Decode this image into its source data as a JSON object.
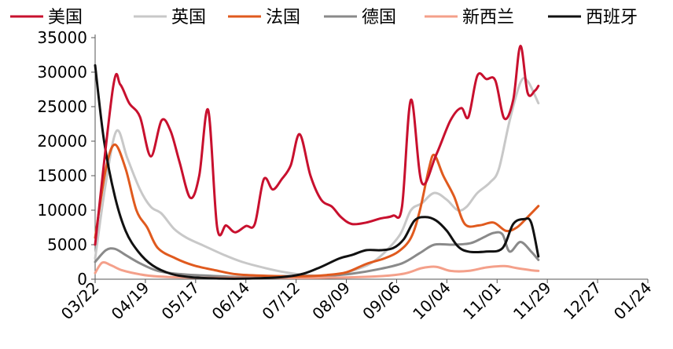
{
  "chart_data": {
    "type": "line",
    "title": "",
    "xlabel": "",
    "ylabel": "",
    "ylim": [
      0,
      35000
    ],
    "yticks": [
      0,
      5000,
      10000,
      15000,
      20000,
      25000,
      30000,
      35000
    ],
    "xlim": [
      "2020-03-22",
      "2021-01-24"
    ],
    "xticks": [
      "2020-03-22",
      "2020-04-19",
      "2020-05-17",
      "2020-06-14",
      "2020-07-12",
      "2020-08-09",
      "2020-09-06",
      "2020-10-04",
      "2020-11-01",
      "2020-11-29",
      "2020-12-27",
      "2021-01-24"
    ],
    "xtick_labels": [
      "03/22",
      "04/19",
      "05/17",
      "06/14",
      "07/12",
      "08/09",
      "09/06",
      "10/04",
      "11/01",
      "11/29",
      "12/27",
      "01/24"
    ],
    "grid": false,
    "legend": "top",
    "series": [
      {
        "name": "美国",
        "color": "#c8102e",
        "points": [
          [
            "2020-03-22",
            5000
          ],
          [
            "2020-04-01",
            27800
          ],
          [
            "2020-04-05",
            28200
          ],
          [
            "2020-04-10",
            25500
          ],
          [
            "2020-04-16",
            23500
          ],
          [
            "2020-04-22",
            17800
          ],
          [
            "2020-04-28",
            23000
          ],
          [
            "2020-05-03",
            21500
          ],
          [
            "2020-05-08",
            17000
          ],
          [
            "2020-05-14",
            11800
          ],
          [
            "2020-05-19",
            15000
          ],
          [
            "2020-05-24",
            24500
          ],
          [
            "2020-05-29",
            7500
          ],
          [
            "2020-06-03",
            7800
          ],
          [
            "2020-06-08",
            6800
          ],
          [
            "2020-06-14",
            7700
          ],
          [
            "2020-06-19",
            8000
          ],
          [
            "2020-06-24",
            14500
          ],
          [
            "2020-06-29",
            13000
          ],
          [
            "2020-07-04",
            14500
          ],
          [
            "2020-07-09",
            16500
          ],
          [
            "2020-07-14",
            21000
          ],
          [
            "2020-07-20",
            15000
          ],
          [
            "2020-07-26",
            11500
          ],
          [
            "2020-08-01",
            10500
          ],
          [
            "2020-08-06",
            9000
          ],
          [
            "2020-08-12",
            8000
          ],
          [
            "2020-08-20",
            8200
          ],
          [
            "2020-08-28",
            8800
          ],
          [
            "2020-09-04",
            9200
          ],
          [
            "2020-09-09",
            10500
          ],
          [
            "2020-09-14",
            26000
          ],
          [
            "2020-09-20",
            14000
          ],
          [
            "2020-09-28",
            18000
          ],
          [
            "2020-10-06",
            23000
          ],
          [
            "2020-10-12",
            24800
          ],
          [
            "2020-10-16",
            23500
          ],
          [
            "2020-10-21",
            29500
          ],
          [
            "2020-10-26",
            29000
          ],
          [
            "2020-10-31",
            28800
          ],
          [
            "2020-11-05",
            23300
          ],
          [
            "2020-11-10",
            26000
          ],
          [
            "2020-11-14",
            33800
          ],
          [
            "2020-11-18",
            27000
          ],
          [
            "2020-11-22",
            27300
          ],
          [
            "2020-11-24",
            28000
          ]
        ]
      },
      {
        "name": "英国",
        "color": "#c8c8c8",
        "points": [
          [
            "2020-03-22",
            3000
          ],
          [
            "2020-03-28",
            14000
          ],
          [
            "2020-04-03",
            21500
          ],
          [
            "2020-04-09",
            17500
          ],
          [
            "2020-04-16",
            13000
          ],
          [
            "2020-04-22",
            10500
          ],
          [
            "2020-04-28",
            9500
          ],
          [
            "2020-05-05",
            7300
          ],
          [
            "2020-05-12",
            6000
          ],
          [
            "2020-05-22",
            4800
          ],
          [
            "2020-06-02",
            3500
          ],
          [
            "2020-06-12",
            2500
          ],
          [
            "2020-06-25",
            1600
          ],
          [
            "2020-07-06",
            1000
          ],
          [
            "2020-07-20",
            500
          ],
          [
            "2020-08-01",
            500
          ],
          [
            "2020-08-12",
            1200
          ],
          [
            "2020-08-22",
            2200
          ],
          [
            "2020-08-30",
            3800
          ],
          [
            "2020-09-08",
            6500
          ],
          [
            "2020-09-14",
            10000
          ],
          [
            "2020-09-20",
            11000
          ],
          [
            "2020-09-27",
            12500
          ],
          [
            "2020-10-04",
            11500
          ],
          [
            "2020-10-10",
            10000
          ],
          [
            "2020-10-15",
            10500
          ],
          [
            "2020-10-21",
            12500
          ],
          [
            "2020-10-28",
            14000
          ],
          [
            "2020-11-02",
            16000
          ],
          [
            "2020-11-08",
            23000
          ],
          [
            "2020-11-14",
            28500
          ],
          [
            "2020-11-18",
            28700
          ],
          [
            "2020-11-24",
            25500
          ]
        ]
      },
      {
        "name": "法国",
        "color": "#e05a1e",
        "points": [
          [
            "2020-03-22",
            6000
          ],
          [
            "2020-03-28",
            16000
          ],
          [
            "2020-04-02",
            19500
          ],
          [
            "2020-04-08",
            16000
          ],
          [
            "2020-04-14",
            10000
          ],
          [
            "2020-04-20",
            7500
          ],
          [
            "2020-04-26",
            4500
          ],
          [
            "2020-05-06",
            3000
          ],
          [
            "2020-05-16",
            2000
          ],
          [
            "2020-05-28",
            1300
          ],
          [
            "2020-06-09",
            700
          ],
          [
            "2020-06-25",
            500
          ],
          [
            "2020-07-12",
            400
          ],
          [
            "2020-07-29",
            600
          ],
          [
            "2020-08-09",
            1000
          ],
          [
            "2020-08-20",
            2200
          ],
          [
            "2020-08-30",
            3000
          ],
          [
            "2020-09-07",
            4000
          ],
          [
            "2020-09-14",
            6000
          ],
          [
            "2020-09-19",
            10000
          ],
          [
            "2020-09-24",
            16000
          ],
          [
            "2020-09-27",
            18000
          ],
          [
            "2020-10-02",
            15000
          ],
          [
            "2020-10-08",
            12000
          ],
          [
            "2020-10-14",
            8000
          ],
          [
            "2020-10-22",
            7800
          ],
          [
            "2020-10-30",
            8200
          ],
          [
            "2020-11-06",
            7000
          ],
          [
            "2020-11-12",
            7500
          ],
          [
            "2020-11-18",
            9000
          ],
          [
            "2020-11-24",
            10600
          ]
        ]
      },
      {
        "name": "德国",
        "color": "#8a8a8a",
        "points": [
          [
            "2020-03-22",
            2500
          ],
          [
            "2020-03-28",
            4200
          ],
          [
            "2020-04-02",
            4400
          ],
          [
            "2020-04-08",
            3500
          ],
          [
            "2020-04-16",
            2300
          ],
          [
            "2020-04-26",
            1200
          ],
          [
            "2020-05-10",
            700
          ],
          [
            "2020-05-25",
            500
          ],
          [
            "2020-06-12",
            300
          ],
          [
            "2020-06-27",
            400
          ],
          [
            "2020-07-15",
            500
          ],
          [
            "2020-07-28",
            500
          ],
          [
            "2020-08-12",
            800
          ],
          [
            "2020-08-26",
            1400
          ],
          [
            "2020-09-09",
            2300
          ],
          [
            "2020-09-19",
            3800
          ],
          [
            "2020-09-27",
            5000
          ],
          [
            "2020-10-07",
            5000
          ],
          [
            "2020-10-17",
            5200
          ],
          [
            "2020-10-24",
            6000
          ],
          [
            "2020-10-30",
            6700
          ],
          [
            "2020-11-04",
            6500
          ],
          [
            "2020-11-08",
            4000
          ],
          [
            "2020-11-14",
            5400
          ],
          [
            "2020-11-20",
            4000
          ],
          [
            "2020-11-24",
            2800
          ]
        ]
      },
      {
        "name": "新西兰",
        "color": "#f4a08a",
        "points": [
          [
            "2020-03-22",
            900
          ],
          [
            "2020-03-26",
            2400
          ],
          [
            "2020-03-31",
            2000
          ],
          [
            "2020-04-06",
            1300
          ],
          [
            "2020-04-16",
            700
          ],
          [
            "2020-04-26",
            400
          ],
          [
            "2020-05-20",
            200
          ],
          [
            "2020-06-20",
            200
          ],
          [
            "2020-07-25",
            200
          ],
          [
            "2020-08-25",
            400
          ],
          [
            "2020-09-10",
            800
          ],
          [
            "2020-09-20",
            1600
          ],
          [
            "2020-09-28",
            1800
          ],
          [
            "2020-10-06",
            1200
          ],
          [
            "2020-10-16",
            1200
          ],
          [
            "2020-10-26",
            1700
          ],
          [
            "2020-11-05",
            1900
          ],
          [
            "2020-11-12",
            1600
          ],
          [
            "2020-11-20",
            1300
          ],
          [
            "2020-11-24",
            1200
          ]
        ]
      },
      {
        "name": "西班牙",
        "color": "#111111",
        "points": [
          [
            "2020-03-22",
            31000
          ],
          [
            "2020-03-27",
            20000
          ],
          [
            "2020-04-02",
            12000
          ],
          [
            "2020-04-08",
            7000
          ],
          [
            "2020-04-15",
            4000
          ],
          [
            "2020-04-23",
            2000
          ],
          [
            "2020-05-03",
            800
          ],
          [
            "2020-05-14",
            300
          ],
          [
            "2020-05-30",
            100
          ],
          [
            "2020-06-16",
            100
          ],
          [
            "2020-07-04",
            300
          ],
          [
            "2020-07-16",
            800
          ],
          [
            "2020-07-26",
            1800
          ],
          [
            "2020-08-05",
            3000
          ],
          [
            "2020-08-12",
            3500
          ],
          [
            "2020-08-20",
            4200
          ],
          [
            "2020-08-28",
            4200
          ],
          [
            "2020-09-04",
            4500
          ],
          [
            "2020-09-10",
            5800
          ],
          [
            "2020-09-16",
            8500
          ],
          [
            "2020-09-22",
            9000
          ],
          [
            "2020-09-28",
            8500
          ],
          [
            "2020-10-04",
            7000
          ],
          [
            "2020-10-10",
            4800
          ],
          [
            "2020-10-16",
            4000
          ],
          [
            "2020-10-26",
            4000
          ],
          [
            "2020-11-04",
            4500
          ],
          [
            "2020-11-10",
            8000
          ],
          [
            "2020-11-16",
            8700
          ],
          [
            "2020-11-20",
            8200
          ],
          [
            "2020-11-24",
            3300
          ]
        ]
      }
    ]
  }
}
